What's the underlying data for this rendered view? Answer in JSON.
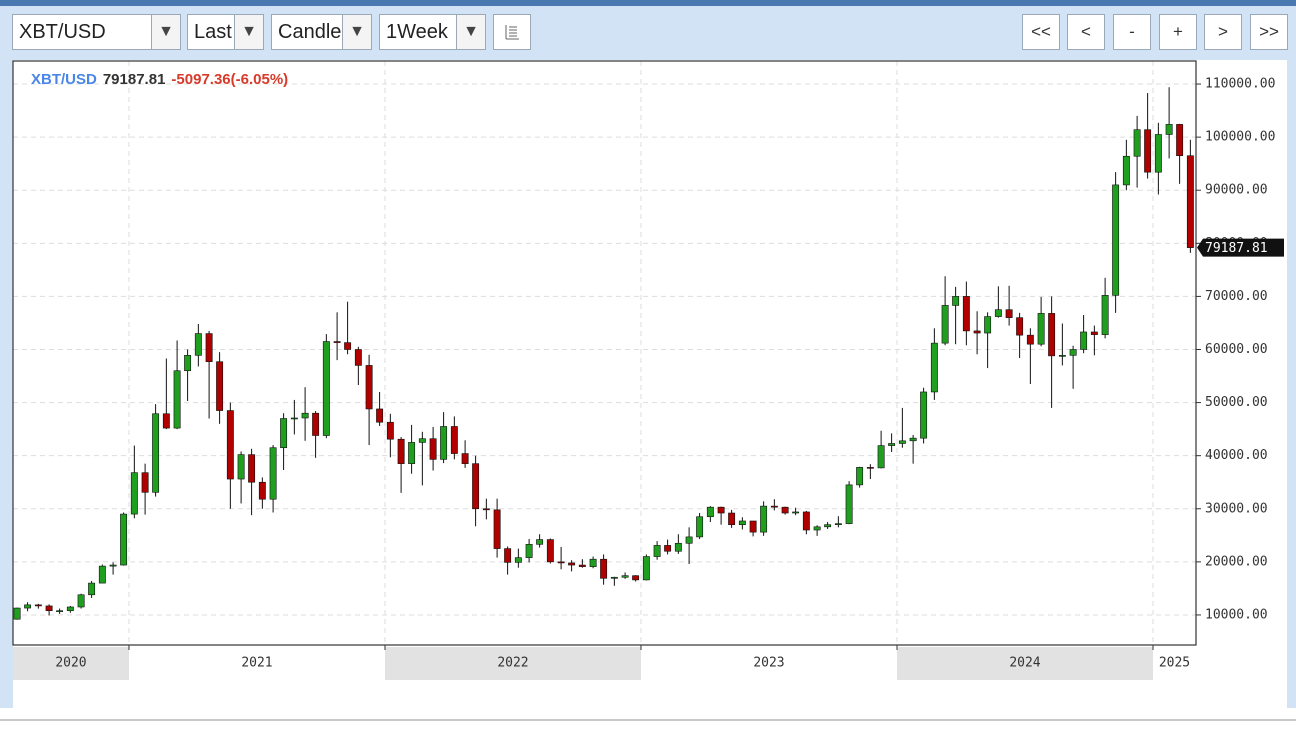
{
  "toolbar": {
    "symbol": "XBT/USD",
    "price_type": "Last",
    "chart_style": "Candle",
    "interval": "1Week",
    "nav": [
      "<<",
      "<",
      "-",
      "+",
      ">",
      ">>"
    ]
  },
  "chart_data": {
    "type": "candlestick",
    "symbol": "XBT/USD",
    "last": 79187.81,
    "change_label": "-5097.36(-6.05%)",
    "up_color": "#1f9e1f",
    "down_color": "#b00000",
    "xlim": [
      2020.547,
      2025.168
    ],
    "xticks": [
      2020,
      2021,
      2022,
      2023,
      2024,
      2025
    ],
    "ylim": [
      4340,
      114340
    ],
    "yticks": [
      {
        "value": 10000,
        "label": "10000.00"
      },
      {
        "value": 20000,
        "label": "20000.00"
      },
      {
        "value": 30000,
        "label": "30000.00"
      },
      {
        "value": 40000,
        "label": "40000.00"
      },
      {
        "value": 50000,
        "label": "50000.00"
      },
      {
        "value": 60000,
        "label": "60000.00"
      },
      {
        "value": 70000,
        "label": "70000.00"
      },
      {
        "value": 80000,
        "label": "80000.00"
      },
      {
        "value": 90000,
        "label": "90000.00"
      },
      {
        "value": 100000,
        "label": "100000.00"
      },
      {
        "value": 110000,
        "label": "110000.00"
      }
    ],
    "grid": true,
    "x": [
      2020.563,
      2020.604,
      2020.646,
      2020.688,
      2020.729,
      2020.771,
      2020.813,
      2020.854,
      2020.896,
      2020.938,
      2020.979,
      2021.021,
      2021.063,
      2021.104,
      2021.146,
      2021.188,
      2021.229,
      2021.271,
      2021.313,
      2021.354,
      2021.396,
      2021.438,
      2021.479,
      2021.521,
      2021.563,
      2021.604,
      2021.646,
      2021.688,
      2021.729,
      2021.771,
      2021.813,
      2021.854,
      2021.896,
      2021.938,
      2021.979,
      2022.021,
      2022.063,
      2022.104,
      2022.146,
      2022.188,
      2022.229,
      2022.271,
      2022.313,
      2022.354,
      2022.396,
      2022.438,
      2022.479,
      2022.521,
      2022.563,
      2022.604,
      2022.646,
      2022.688,
      2022.729,
      2022.771,
      2022.813,
      2022.854,
      2022.896,
      2022.938,
      2022.979,
      2023.021,
      2023.063,
      2023.104,
      2023.146,
      2023.188,
      2023.229,
      2023.271,
      2023.313,
      2023.354,
      2023.396,
      2023.438,
      2023.479,
      2023.521,
      2023.563,
      2023.604,
      2023.646,
      2023.688,
      2023.729,
      2023.771,
      2023.813,
      2023.854,
      2023.896,
      2023.938,
      2023.979,
      2024.021,
      2024.063,
      2024.104,
      2024.146,
      2024.188,
      2024.229,
      2024.271,
      2024.313,
      2024.354,
      2024.396,
      2024.438,
      2024.479,
      2024.521,
      2024.563,
      2024.604,
      2024.646,
      2024.688,
      2024.729,
      2024.771,
      2024.813,
      2024.854,
      2024.896,
      2024.938,
      2024.979,
      2025.021,
      2025.063,
      2025.104,
      2025.146
    ],
    "ohlc": [
      [
        9200,
        11400,
        9100,
        11300
      ],
      [
        11300,
        12400,
        10700,
        11900
      ],
      [
        11900,
        12100,
        11200,
        11700
      ],
      [
        11700,
        12000,
        9900,
        10800
      ],
      [
        10800,
        11200,
        10200,
        10800
      ],
      [
        10800,
        11700,
        10400,
        11500
      ],
      [
        11500,
        14000,
        11200,
        13800
      ],
      [
        13800,
        16400,
        13200,
        16000
      ],
      [
        16000,
        19500,
        16000,
        19200
      ],
      [
        19200,
        19900,
        17600,
        19400
      ],
      [
        19400,
        29300,
        19300,
        29000
      ],
      [
        29000,
        41900,
        28200,
        36800
      ],
      [
        36800,
        38500,
        28900,
        33100
      ],
      [
        33100,
        49700,
        32300,
        47900
      ],
      [
        47900,
        58300,
        45000,
        45200
      ],
      [
        45200,
        61700,
        45000,
        56000
      ],
      [
        56000,
        60000,
        50300,
        58900
      ],
      [
        58900,
        64800,
        56800,
        63000
      ],
      [
        63000,
        63500,
        47000,
        57700
      ],
      [
        57700,
        59500,
        46000,
        48500
      ],
      [
        48500,
        50000,
        30000,
        35600
      ],
      [
        35600,
        40800,
        31000,
        40200
      ],
      [
        40200,
        41300,
        28800,
        35000
      ],
      [
        35000,
        35900,
        30000,
        31800
      ],
      [
        31800,
        42000,
        29300,
        41500
      ],
      [
        41500,
        48000,
        37300,
        47000
      ],
      [
        47000,
        50500,
        44000,
        47100
      ],
      [
        47100,
        52900,
        42800,
        48000
      ],
      [
        48000,
        48400,
        39600,
        43800
      ],
      [
        43800,
        62900,
        43300,
        61500
      ],
      [
        61500,
        67000,
        58000,
        61300
      ],
      [
        61300,
        69000,
        59100,
        60000
      ],
      [
        60000,
        60500,
        53300,
        57000
      ],
      [
        57000,
        59000,
        42000,
        48800
      ],
      [
        48800,
        52000,
        45600,
        46300
      ],
      [
        46300,
        47900,
        39700,
        43100
      ],
      [
        43100,
        43500,
        33000,
        38500
      ],
      [
        38500,
        45800,
        36600,
        42500
      ],
      [
        42500,
        44500,
        34400,
        43200
      ],
      [
        43200,
        45400,
        37200,
        39300
      ],
      [
        39300,
        48200,
        38600,
        45500
      ],
      [
        45500,
        47400,
        39300,
        40400
      ],
      [
        40400,
        42900,
        37700,
        38500
      ],
      [
        38500,
        40000,
        26700,
        30000
      ],
      [
        30000,
        31900,
        28000,
        29800
      ],
      [
        29800,
        31900,
        20800,
        22500
      ],
      [
        22500,
        22900,
        17600,
        19900
      ],
      [
        19900,
        22500,
        18900,
        20800
      ],
      [
        20800,
        24300,
        19900,
        23300
      ],
      [
        23300,
        25200,
        22700,
        24200
      ],
      [
        24200,
        24400,
        19700,
        20000
      ],
      [
        20000,
        22800,
        18600,
        19800
      ],
      [
        19800,
        20300,
        18200,
        19400
      ],
      [
        19400,
        20500,
        18900,
        19100
      ],
      [
        19100,
        21000,
        18800,
        20500
      ],
      [
        20500,
        21400,
        15700,
        16900
      ],
      [
        16900,
        17200,
        15500,
        17100
      ],
      [
        17100,
        18000,
        16800,
        17400
      ],
      [
        17400,
        17500,
        16300,
        16600
      ],
      [
        16600,
        21400,
        16500,
        21000
      ],
      [
        21000,
        23900,
        20400,
        23100
      ],
      [
        23100,
        24200,
        21400,
        22000
      ],
      [
        22000,
        25200,
        21500,
        23500
      ],
      [
        23500,
        26500,
        19600,
        24700
      ],
      [
        24700,
        29200,
        24300,
        28500
      ],
      [
        28500,
        30500,
        27500,
        30300
      ],
      [
        30300,
        30400,
        27000,
        29200
      ],
      [
        29200,
        29800,
        26400,
        27000
      ],
      [
        27000,
        28400,
        26100,
        27700
      ],
      [
        27700,
        27700,
        24800,
        25600
      ],
      [
        25600,
        31400,
        24900,
        30500
      ],
      [
        30500,
        31800,
        29700,
        30300
      ],
      [
        30300,
        30400,
        28900,
        29200
      ],
      [
        29200,
        30200,
        28800,
        29400
      ],
      [
        29400,
        29600,
        25200,
        26000
      ],
      [
        26000,
        26900,
        24900,
        26600
      ],
      [
        26600,
        27500,
        26200,
        27000
      ],
      [
        27000,
        28600,
        26500,
        27200
      ],
      [
        27200,
        35200,
        27100,
        34500
      ],
      [
        34500,
        37900,
        34000,
        37800
      ],
      [
        37800,
        38400,
        35600,
        37700
      ],
      [
        37700,
        44700,
        37600,
        41900
      ],
      [
        41900,
        44200,
        40700,
        42300
      ],
      [
        42300,
        49000,
        41500,
        42800
      ],
      [
        42800,
        43900,
        38500,
        43300
      ],
      [
        43300,
        52800,
        42300,
        52000
      ],
      [
        52000,
        64000,
        50500,
        61200
      ],
      [
        61200,
        73800,
        60800,
        68300
      ],
      [
        68300,
        71800,
        61000,
        70000
      ],
      [
        70000,
        72800,
        60800,
        63500
      ],
      [
        63500,
        67200,
        59100,
        63100
      ],
      [
        63100,
        67000,
        56500,
        66200
      ],
      [
        66200,
        71900,
        66000,
        67500
      ],
      [
        67500,
        72000,
        64500,
        66000
      ],
      [
        66000,
        66900,
        58400,
        62700
      ],
      [
        62700,
        64000,
        53500,
        61000
      ],
      [
        61000,
        69900,
        60600,
        66800
      ],
      [
        66800,
        70000,
        49000,
        58800
      ],
      [
        58800,
        64900,
        57000,
        58900
      ],
      [
        58900,
        60700,
        52600,
        60000
      ],
      [
        60000,
        66500,
        59300,
        63300
      ],
      [
        63300,
        64500,
        58900,
        62800
      ],
      [
        62800,
        73500,
        62100,
        70200
      ],
      [
        70200,
        93400,
        66900,
        91000
      ],
      [
        91000,
        99500,
        90000,
        96400
      ],
      [
        96400,
        104000,
        90500,
        101400
      ],
      [
        101400,
        108300,
        92200,
        93400
      ],
      [
        93400,
        102700,
        89200,
        100500
      ],
      [
        100500,
        109400,
        96000,
        102400
      ],
      [
        102400,
        102500,
        91200,
        96500
      ],
      [
        96500,
        99500,
        78200,
        79187.81
      ]
    ]
  }
}
